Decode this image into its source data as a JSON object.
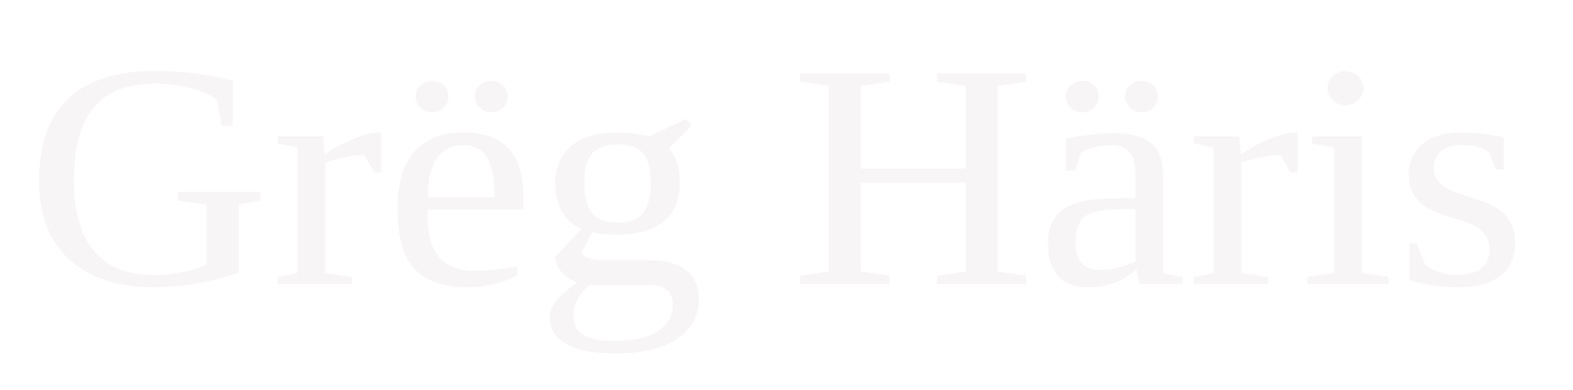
{
  "logo": {
    "text": "Grëg Häris",
    "color": "#f7f5f5"
  }
}
